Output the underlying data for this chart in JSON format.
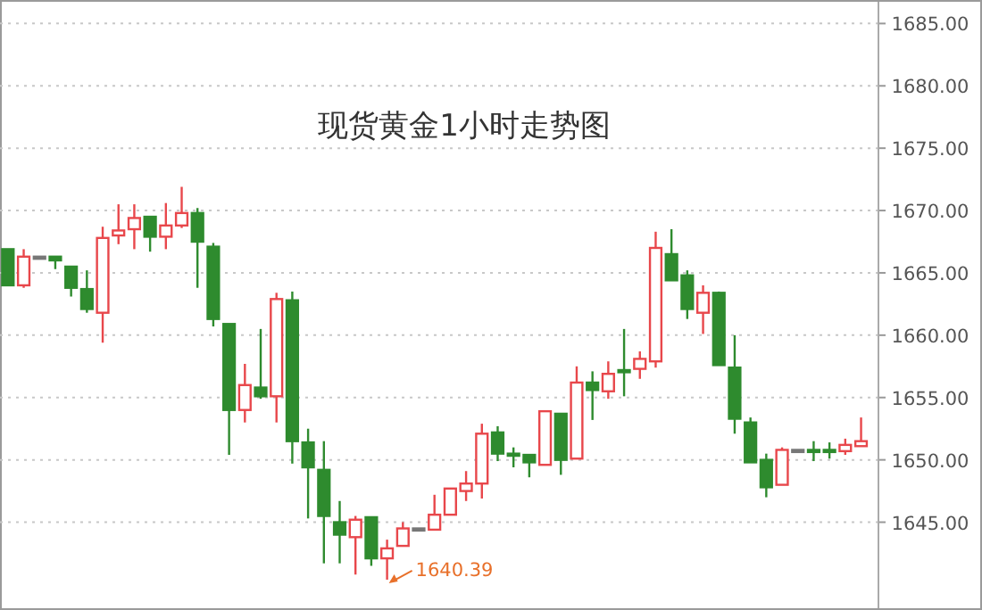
{
  "chart_data": {
    "type": "candlestick",
    "title": "现货黄金1小时走势图",
    "categories": [
      null,
      null,
      null,
      null,
      null,
      null,
      null,
      null,
      null,
      null,
      null,
      null,
      null,
      null,
      null,
      null,
      null,
      null,
      null,
      null,
      null,
      null,
      null,
      null,
      null,
      null,
      null,
      null,
      null,
      null,
      null,
      null,
      null,
      null,
      null,
      null,
      null,
      null,
      null,
      null,
      null,
      null,
      null,
      null,
      null,
      null,
      null,
      null,
      null,
      null,
      null,
      null,
      null,
      null,
      null
    ],
    "ohlc": [
      [
        1666.9,
        1666.9,
        1664.0,
        1664.0
      ],
      [
        1664.0,
        1666.9,
        1663.8,
        1666.3
      ],
      [
        1666.3,
        1666.3,
        1666.3,
        1666.3
      ],
      [
        1666.3,
        1666.3,
        1665.3,
        1666.0
      ],
      [
        1665.5,
        1665.5,
        1663.1,
        1663.8
      ],
      [
        1663.7,
        1665.2,
        1661.8,
        1662.1
      ],
      [
        1661.8,
        1668.7,
        1659.4,
        1667.8
      ],
      [
        1668.0,
        1670.5,
        1667.3,
        1668.4
      ],
      [
        1668.5,
        1670.5,
        1666.9,
        1669.4
      ],
      [
        1669.5,
        1669.5,
        1666.7,
        1667.9
      ],
      [
        1667.9,
        1670.6,
        1666.9,
        1668.8
      ],
      [
        1668.8,
        1671.9,
        1668.6,
        1669.8
      ],
      [
        1669.8,
        1670.2,
        1663.8,
        1667.5
      ],
      [
        1667.1,
        1667.4,
        1660.7,
        1661.3
      ],
      [
        1660.9,
        1660.9,
        1650.4,
        1654.0
      ],
      [
        1654.0,
        1657.7,
        1653.0,
        1656.0
      ],
      [
        1655.8,
        1660.5,
        1654.9,
        1655.1
      ],
      [
        1655.1,
        1663.4,
        1653.0,
        1662.9
      ],
      [
        1662.8,
        1663.5,
        1649.7,
        1651.5
      ],
      [
        1651.4,
        1652.5,
        1645.3,
        1649.4
      ],
      [
        1649.2,
        1651.5,
        1641.7,
        1645.5
      ],
      [
        1645.0,
        1646.7,
        1641.7,
        1644.0
      ],
      [
        1643.8,
        1645.5,
        1640.8,
        1645.2
      ],
      [
        1645.4,
        1645.4,
        1641.5,
        1642.1
      ],
      [
        1642.1,
        1643.6,
        1640.39,
        1642.9
      ],
      [
        1643.1,
        1645.0,
        1643.1,
        1644.5
      ],
      [
        1644.5,
        1644.5,
        1644.5,
        1644.5
      ],
      [
        1644.4,
        1647.2,
        1644.4,
        1645.6
      ],
      [
        1645.6,
        1647.7,
        1645.6,
        1647.7
      ],
      [
        1647.5,
        1649.1,
        1646.7,
        1648.1
      ],
      [
        1648.1,
        1652.9,
        1646.9,
        1652.1
      ],
      [
        1652.2,
        1652.7,
        1649.9,
        1650.5
      ],
      [
        1650.5,
        1651.0,
        1649.4,
        1650.5
      ],
      [
        1650.4,
        1650.4,
        1648.6,
        1649.8
      ],
      [
        1649.6,
        1653.9,
        1649.6,
        1653.9
      ],
      [
        1653.7,
        1653.7,
        1648.8,
        1650.0
      ],
      [
        1650.1,
        1657.5,
        1650.1,
        1656.2
      ],
      [
        1656.2,
        1657.1,
        1653.2,
        1655.6
      ],
      [
        1655.5,
        1657.9,
        1654.9,
        1656.9
      ],
      [
        1657.2,
        1660.5,
        1655.1,
        1657.2
      ],
      [
        1657.3,
        1658.7,
        1656.5,
        1658.1
      ],
      [
        1657.9,
        1668.3,
        1657.4,
        1667.0
      ],
      [
        1666.5,
        1668.5,
        1664.4,
        1664.4
      ],
      [
        1664.8,
        1665.2,
        1661.3,
        1662.1
      ],
      [
        1661.8,
        1664.0,
        1660.1,
        1663.4
      ],
      [
        1663.4,
        1663.5,
        1657.6,
        1657.6
      ],
      [
        1657.4,
        1660.0,
        1652.1,
        1653.3
      ],
      [
        1653.0,
        1653.4,
        1649.8,
        1649.8
      ],
      [
        1650.0,
        1650.5,
        1647.0,
        1647.8
      ],
      [
        1648.0,
        1651.0,
        1648.0,
        1650.8
      ],
      [
        1650.8,
        1650.8,
        1650.8,
        1650.8
      ],
      [
        1650.8,
        1651.5,
        1649.9,
        1650.8
      ],
      [
        1650.8,
        1651.4,
        1650.1,
        1650.8
      ],
      [
        1650.7,
        1651.7,
        1650.4,
        1651.2
      ],
      [
        1651.1,
        1653.4,
        1651.1,
        1651.5
      ]
    ],
    "colors": [
      "#2e8b2e",
      "#e8474b",
      "#777777",
      "#2e8b2e",
      "#2e8b2e",
      "#2e8b2e",
      "#e8474b",
      "#e8474b",
      "#e8474b",
      "#2e8b2e",
      "#e8474b",
      "#e8474b",
      "#2e8b2e",
      "#2e8b2e",
      "#2e8b2e",
      "#e8474b",
      "#2e8b2e",
      "#e8474b",
      "#2e8b2e",
      "#2e8b2e",
      "#2e8b2e",
      "#2e8b2e",
      "#e8474b",
      "#2e8b2e",
      "#e8474b",
      "#e8474b",
      "#777777",
      "#e8474b",
      "#e8474b",
      "#e8474b",
      "#e8474b",
      "#2e8b2e",
      "#2e8b2e",
      "#2e8b2e",
      "#e8474b",
      "#2e8b2e",
      "#e8474b",
      "#2e8b2e",
      "#e8474b",
      "#2e8b2e",
      "#e8474b",
      "#e8474b",
      "#2e8b2e",
      "#2e8b2e",
      "#e8474b",
      "#2e8b2e",
      "#2e8b2e",
      "#2e8b2e",
      "#2e8b2e",
      "#e8474b",
      "#777777",
      "#2e8b2e",
      "#2e8b2e",
      "#e8474b",
      "#e8474b"
    ],
    "ylim": [
      1638.1,
      1686.6
    ],
    "yticks": [
      {
        "value": 1645,
        "label": "1645.00"
      },
      {
        "value": 1650,
        "label": "1650.00"
      },
      {
        "value": 1655,
        "label": "1655.00"
      },
      {
        "value": 1660,
        "label": "1660.00"
      },
      {
        "value": 1665,
        "label": "1665.00"
      },
      {
        "value": 1670,
        "label": "1670.00"
      },
      {
        "value": 1675,
        "label": "1675.00"
      },
      {
        "value": 1680,
        "label": "1680.00"
      },
      {
        "value": 1685,
        "label": "1685.00"
      }
    ],
    "grid": "y",
    "annotations": [
      "1640.39"
    ]
  }
}
